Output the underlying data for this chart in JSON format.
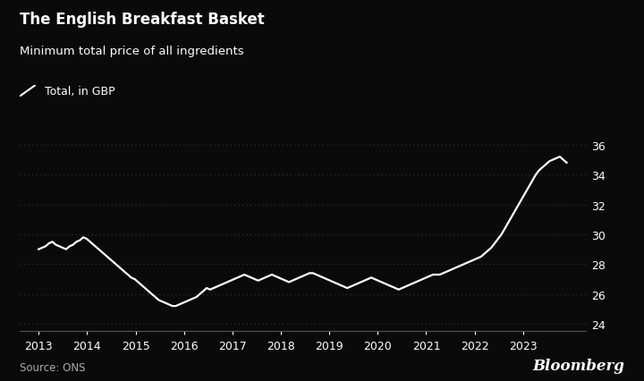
{
  "title": "The English Breakfast Basket",
  "subtitle": "Minimum total price of all ingredients",
  "legend_label": "Total, in GBP",
  "source": "Source: ONS",
  "watermark": "Bloomberg",
  "background_color": "#0a0a0a",
  "line_color": "#ffffff",
  "grid_color": "#3a3a3a",
  "text_color": "#ffffff",
  "source_color": "#aaaaaa",
  "ylim": [
    23.5,
    36.8
  ],
  "yticks": [
    24,
    26,
    28,
    30,
    32,
    34,
    36
  ],
  "xlim": [
    2012.6,
    2024.3
  ],
  "xtick_labels": [
    "2013",
    "2014",
    "2015",
    "2016",
    "2017",
    "2018",
    "2019",
    "2020",
    "2021",
    "2022",
    "2023"
  ],
  "series": [
    29.0,
    29.1,
    29.2,
    29.4,
    29.5,
    29.3,
    29.2,
    29.1,
    29.0,
    29.2,
    29.3,
    29.5,
    29.6,
    29.8,
    29.7,
    29.5,
    29.3,
    29.1,
    28.9,
    28.7,
    28.5,
    28.3,
    28.1,
    27.9,
    27.7,
    27.5,
    27.3,
    27.1,
    27.0,
    26.8,
    26.6,
    26.4,
    26.2,
    26.0,
    25.8,
    25.6,
    25.5,
    25.4,
    25.3,
    25.2,
    25.2,
    25.3,
    25.4,
    25.5,
    25.6,
    25.7,
    25.8,
    26.0,
    26.2,
    26.4,
    26.3,
    26.4,
    26.5,
    26.6,
    26.7,
    26.8,
    26.9,
    27.0,
    27.1,
    27.2,
    27.3,
    27.2,
    27.1,
    27.0,
    26.9,
    27.0,
    27.1,
    27.2,
    27.3,
    27.2,
    27.1,
    27.0,
    26.9,
    26.8,
    26.9,
    27.0,
    27.1,
    27.2,
    27.3,
    27.4,
    27.4,
    27.3,
    27.2,
    27.1,
    27.0,
    26.9,
    26.8,
    26.7,
    26.6,
    26.5,
    26.4,
    26.5,
    26.6,
    26.7,
    26.8,
    26.9,
    27.0,
    27.1,
    27.0,
    26.9,
    26.8,
    26.7,
    26.6,
    26.5,
    26.4,
    26.3,
    26.4,
    26.5,
    26.6,
    26.7,
    26.8,
    26.9,
    27.0,
    27.1,
    27.2,
    27.3,
    27.3,
    27.3,
    27.4,
    27.5,
    27.6,
    27.7,
    27.8,
    27.9,
    28.0,
    28.1,
    28.2,
    28.3,
    28.4,
    28.5,
    28.7,
    28.9,
    29.1,
    29.4,
    29.7,
    30.0,
    30.4,
    30.8,
    31.2,
    31.6,
    32.0,
    32.4,
    32.8,
    33.2,
    33.6,
    34.0,
    34.3,
    34.5,
    34.7,
    34.9,
    35.0,
    35.1,
    35.2,
    35.0,
    34.8
  ],
  "n_points": 155
}
